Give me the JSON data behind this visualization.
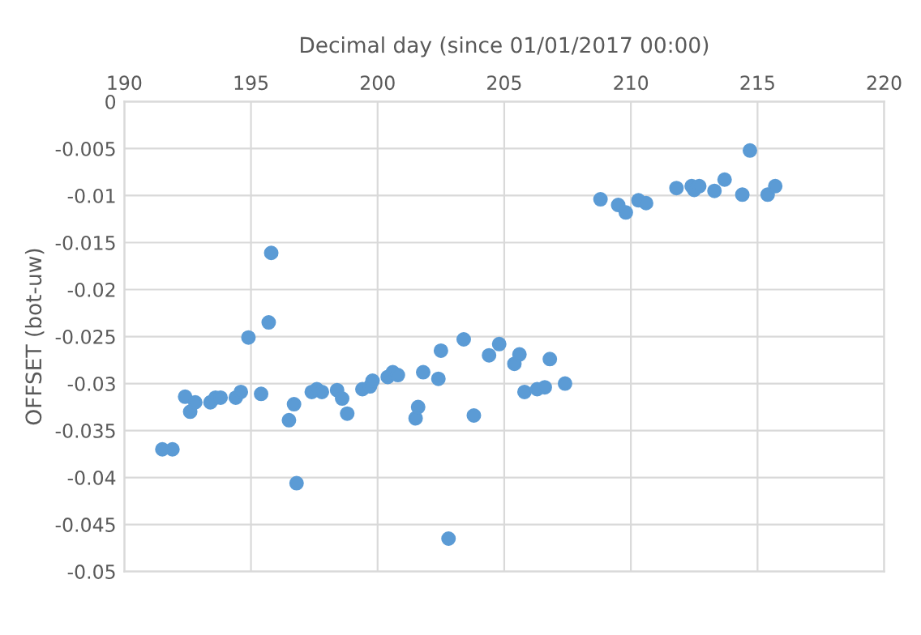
{
  "chart_data": {
    "type": "scatter",
    "xlabel": "Decimal day (since 01/01/2017 00:00)",
    "ylabel": "OFFSET (bot-uw)",
    "xlim": [
      190,
      220
    ],
    "xticks": [
      190,
      195,
      200,
      205,
      210,
      215,
      220
    ],
    "ylim": [
      -0.05,
      0
    ],
    "yticks": [
      -0.05,
      -0.045,
      -0.04,
      -0.035,
      -0.03,
      -0.025,
      -0.02,
      -0.015,
      -0.01,
      -0.005,
      0
    ],
    "grid": true,
    "marker": "circle",
    "series": [
      {
        "color": "#5b9bd5",
        "x": [
          191.5,
          191.9,
          192.4,
          192.6,
          192.8,
          193.4,
          193.6,
          193.8,
          194.4,
          194.6,
          194.9,
          195.4,
          195.7,
          195.8,
          196.5,
          196.7,
          196.8,
          197.4,
          197.6,
          197.8,
          198.4,
          198.6,
          198.8,
          199.4,
          199.7,
          199.8,
          200.4,
          200.6,
          200.8,
          201.8,
          201.5,
          201.6,
          202.4,
          202.5,
          202.8,
          203.4,
          203.8,
          204.4,
          204.8,
          205.4,
          205.6,
          205.8,
          206.3,
          206.6,
          206.8,
          207.4,
          208.8,
          209.5,
          209.8,
          210.3,
          210.6,
          211.8,
          212.4,
          212.5,
          212.7,
          213.3,
          213.7,
          214.4,
          214.7,
          215.4,
          215.7
        ],
        "values": [
          -0.037,
          -0.037,
          -0.0314,
          -0.033,
          -0.032,
          -0.032,
          -0.0315,
          -0.0315,
          -0.0315,
          -0.0309,
          -0.0251,
          -0.0311,
          -0.0235,
          -0.0161,
          -0.0339,
          -0.0322,
          -0.0406,
          -0.0309,
          -0.0306,
          -0.0309,
          -0.0307,
          -0.0316,
          -0.0332,
          -0.0306,
          -0.0303,
          -0.0297,
          -0.0293,
          -0.0288,
          -0.0291,
          -0.0288,
          -0.0337,
          -0.0325,
          -0.0295,
          -0.0265,
          -0.0465,
          -0.0253,
          -0.0334,
          -0.027,
          -0.0258,
          -0.0279,
          -0.0269,
          -0.0309,
          -0.0306,
          -0.0304,
          -0.0274,
          -0.03,
          -0.0104,
          -0.011,
          -0.0118,
          -0.0105,
          -0.0108,
          -0.0092,
          -0.009,
          -0.0094,
          -0.009,
          -0.0095,
          -0.0083,
          -0.0099,
          -0.0052,
          -0.0099,
          -0.009
        ]
      }
    ]
  }
}
